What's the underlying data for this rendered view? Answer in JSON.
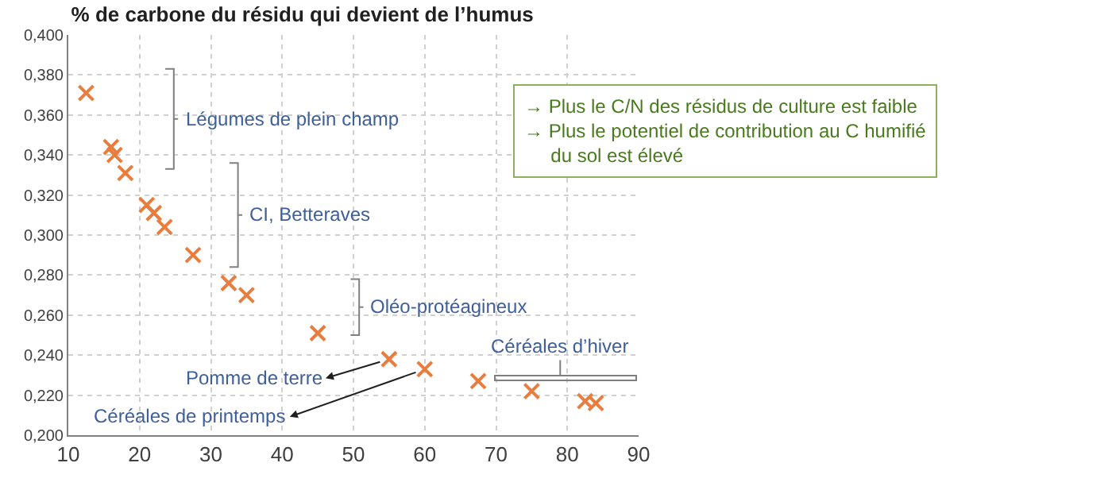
{
  "chart_data": {
    "type": "scatter",
    "title": "% de carbone du résidu qui devient de l’humus",
    "x": [
      12.5,
      16,
      16.5,
      18,
      21,
      22,
      23.5,
      27.5,
      32.5,
      35,
      45,
      55,
      60,
      67.5,
      75,
      82.5,
      84
    ],
    "series": [
      {
        "color": "#e87d3e",
        "values": [
          0.371,
          0.344,
          0.34,
          0.331,
          0.315,
          0.311,
          0.304,
          0.29,
          0.276,
          0.27,
          0.251,
          0.238,
          0.233,
          0.227,
          0.222,
          0.217,
          0.216
        ]
      }
    ],
    "marker": "cross",
    "xlim": [
      10,
      90
    ],
    "xticks": [
      10,
      20,
      30,
      40,
      50,
      60,
      70,
      80,
      90
    ],
    "ylim": [
      0.2,
      0.4
    ],
    "yticks": [
      {
        "value": 0.2,
        "label": "0,200"
      },
      {
        "value": 0.22,
        "label": "0,220"
      },
      {
        "value": 0.24,
        "label": "0,240"
      },
      {
        "value": 0.26,
        "label": "0,260"
      },
      {
        "value": 0.28,
        "label": "0,280"
      },
      {
        "value": 0.3,
        "label": "0,300"
      },
      {
        "value": 0.32,
        "label": "0,320"
      },
      {
        "value": 0.34,
        "label": "0,340"
      },
      {
        "value": 0.36,
        "label": "0,360"
      },
      {
        "value": 0.38,
        "label": "0,380"
      },
      {
        "value": 0.4,
        "label": "0,400"
      }
    ],
    "grid": true,
    "annotations": [
      "Légumes de plein champ",
      "CI, Betteraves",
      "Oléo-protéagineux",
      "Céréales d’hiver",
      {
        "text": "Pomme de terre",
        "x": 55,
        "y": 0.238
      },
      {
        "text": "Céréales de printemps",
        "x": 60,
        "y": 0.233
      },
      "→ Plus le C/N des résidus de culture est faible\n→ Plus le potentiel de contribution au C humifié\n     du sol est élevé"
    ]
  }
}
